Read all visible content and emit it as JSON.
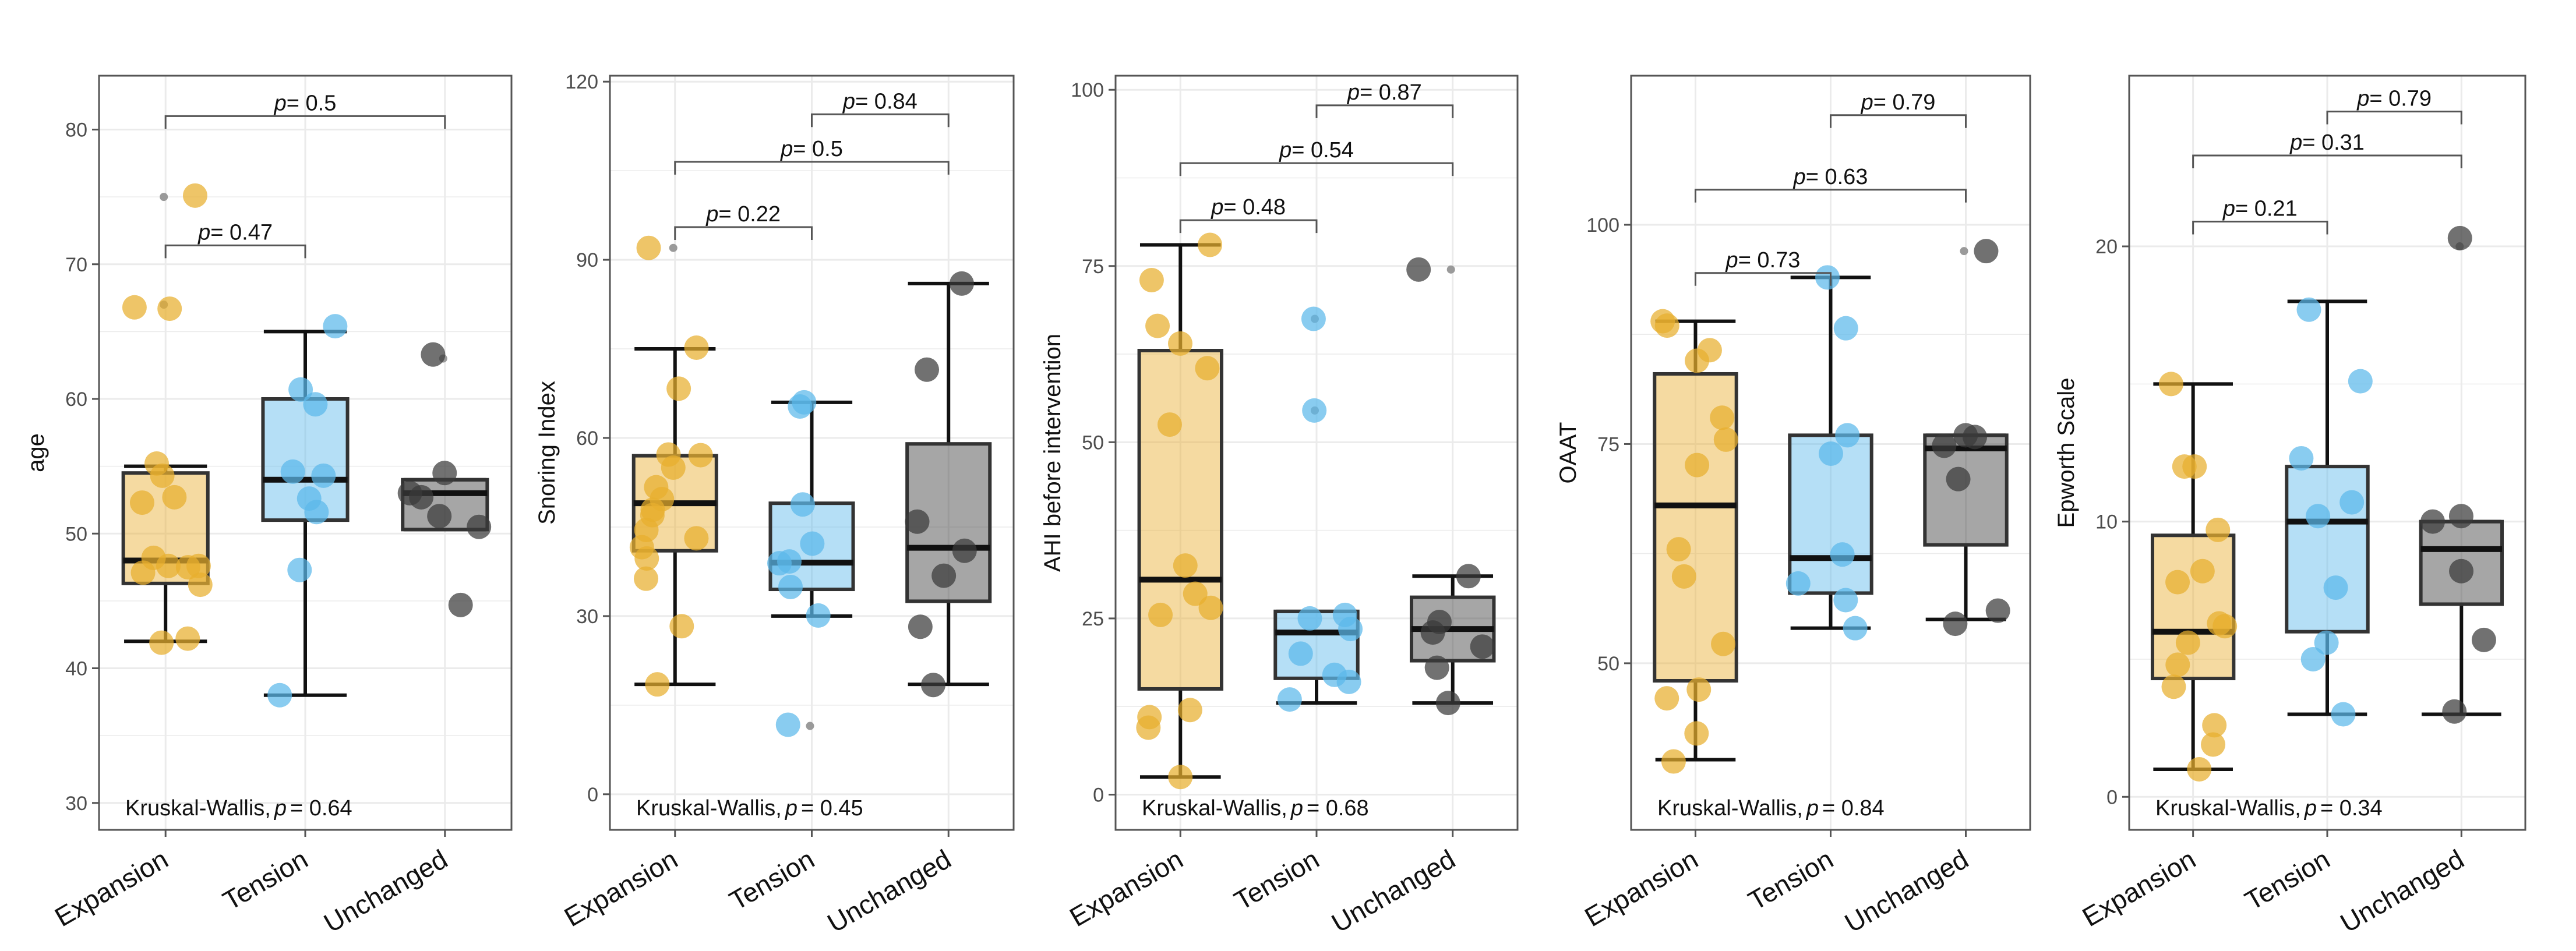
{
  "colors": {
    "expansion": "#E8AE2E",
    "tension": "#5BB8EA",
    "unchanged": "#3A3A3A",
    "grid": "#EBEBEB",
    "frame": "#555555"
  },
  "chart_data": [
    {
      "type": "boxplot",
      "ylabel": "age",
      "categories": [
        "Expansion",
        "Tension",
        "Unchanged"
      ],
      "ylim": [
        28,
        84
      ],
      "yticks": [
        30,
        40,
        50,
        60,
        70,
        80
      ],
      "boxes": [
        {
          "q1": 46.3,
          "median": 48,
          "q3": 54.5,
          "whisker_low": 42,
          "whisker_high": 55
        },
        {
          "q1": 51,
          "median": 54,
          "q3": 60,
          "whisker_low": 38,
          "whisker_high": 65
        },
        {
          "q1": 50.3,
          "median": 53,
          "q3": 54,
          "whisker_low": 50.3,
          "whisker_high": 54
        }
      ],
      "outliers": [
        [
          75,
          67
        ],
        [],
        [
          63
        ]
      ],
      "points": [
        [
          75.1,
          66.8,
          66.7,
          55.2,
          54.3,
          52.7,
          52.3,
          48.2,
          47.6,
          47.6,
          47.5,
          47.1,
          46.2,
          42.2,
          41.9
        ],
        [
          65.4,
          60.7,
          59.6,
          54.6,
          54.3,
          52.6,
          51.6,
          47.3,
          38
        ],
        [
          63.3,
          54.5,
          53,
          52.7,
          51.3,
          50.5,
          44.7
        ]
      ],
      "pvalues": [
        {
          "text": "0.5",
          "from": 0,
          "to": 2,
          "y": 81
        },
        {
          "text": "0.47",
          "from": 0,
          "to": 1,
          "y": 71.4
        }
      ],
      "kruskal_label": "Kruskal-Wallis,",
      "kruskal_p": "= 0.64"
    },
    {
      "type": "boxplot",
      "ylabel": "Snoring Index",
      "categories": [
        "Expansion",
        "Tension",
        "Unchanged"
      ],
      "ylim": [
        -6,
        121
      ],
      "yticks": [
        0,
        30,
        60,
        90,
        120
      ],
      "boxes": [
        {
          "q1": 41,
          "median": 49,
          "q3": 57,
          "whisker_low": 18.5,
          "whisker_high": 75
        },
        {
          "q1": 34.5,
          "median": 39,
          "q3": 49,
          "whisker_low": 30,
          "whisker_high": 66
        },
        {
          "q1": 32.5,
          "median": 41.5,
          "q3": 59,
          "whisker_low": 18.5,
          "whisker_high": 86
        }
      ],
      "outliers": [
        [
          92
        ],
        [
          11.5
        ],
        []
      ],
      "points": [
        [
          92,
          75.2,
          68.3,
          57.2,
          57.1,
          55,
          51.7,
          49.7,
          47.9,
          47,
          44.5,
          43.1,
          41.6,
          39.7,
          36.3,
          28.3,
          18.5
        ],
        [
          66,
          65.3,
          48.8,
          42.2,
          39.2,
          38.9,
          34.9,
          30.1,
          11.7
        ],
        [
          86,
          71.5,
          45.9,
          41,
          36.8,
          28.2,
          18.4
        ]
      ],
      "pvalues": [
        {
          "text": "0.84",
          "from": 1,
          "to": 2,
          "y": 114.5
        },
        {
          "text": "0.5",
          "from": 0,
          "to": 2,
          "y": 106.5
        },
        {
          "text": "0.22",
          "from": 0,
          "to": 1,
          "y": 95.5
        }
      ],
      "kruskal_label": "Kruskal-Wallis,",
      "kruskal_p": "= 0.45"
    },
    {
      "type": "boxplot",
      "ylabel": "AHI before intervention",
      "categories": [
        "Expansion",
        "Tension",
        "Unchanged"
      ],
      "ylim": [
        -5,
        102
      ],
      "yticks": [
        0,
        25,
        50,
        75,
        100
      ],
      "boxes": [
        {
          "q1": 15,
          "median": 30.5,
          "q3": 63,
          "whisker_low": 2.5,
          "whisker_high": 78
        },
        {
          "q1": 16.5,
          "median": 23,
          "q3": 26,
          "whisker_low": 13,
          "whisker_high": 26
        },
        {
          "q1": 19,
          "median": 23.5,
          "q3": 28,
          "whisker_low": 13,
          "whisker_high": 31
        }
      ],
      "outliers": [
        [],
        [
          54.5,
          67.5
        ],
        [
          74.5
        ]
      ],
      "points": [
        [
          78,
          73,
          66.5,
          64,
          60.5,
          52.5,
          32.5,
          28.5,
          26.5,
          25.5,
          12,
          11,
          9.5,
          2.5
        ],
        [
          67.5,
          54.5,
          25.5,
          25,
          23.5,
          20,
          17,
          16,
          13.5
        ],
        [
          74.5,
          31,
          24.5,
          23,
          21,
          18,
          13
        ]
      ],
      "pvalues": [
        {
          "text": "0.87",
          "from": 1,
          "to": 2,
          "y": 97.8
        },
        {
          "text": "0.54",
          "from": 0,
          "to": 2,
          "y": 89.6
        },
        {
          "text": "0.48",
          "from": 0,
          "to": 1,
          "y": 81.5
        }
      ],
      "kruskal_label": "Kruskal-Wallis,",
      "kruskal_p": "= 0.68"
    },
    {
      "type": "boxplot",
      "ylabel": "OAAT",
      "categories": [
        "Expansion",
        "Tension",
        "Unchanged"
      ],
      "ylim": [
        31,
        117
      ],
      "yticks": [
        50,
        75,
        100
      ],
      "boxes": [
        {
          "q1": 48,
          "median": 68,
          "q3": 83,
          "whisker_low": 39,
          "whisker_high": 89
        },
        {
          "q1": 58,
          "median": 62,
          "q3": 76,
          "whisker_low": 54,
          "whisker_high": 94
        },
        {
          "q1": 63.5,
          "median": 74.5,
          "q3": 76,
          "whisker_low": 55,
          "whisker_high": 76
        }
      ],
      "outliers": [
        [],
        [],
        [
          97
        ]
      ],
      "points": [
        [
          89,
          88.5,
          85.7,
          84.5,
          78,
          75.5,
          72.6,
          63,
          59.9,
          52.2,
          47,
          46,
          42,
          38.8
        ],
        [
          94,
          88.2,
          76,
          73.9,
          62.4,
          59.1,
          57.2,
          54
        ],
        [
          97,
          76,
          75.8,
          74.8,
          71,
          56,
          54.5
        ]
      ],
      "pvalues": [
        {
          "text": "0.79",
          "from": 1,
          "to": 2,
          "y": 112.5
        },
        {
          "text": "0.63",
          "from": 0,
          "to": 2,
          "y": 104
        },
        {
          "text": "0.73",
          "from": 0,
          "to": 1,
          "y": 94.5
        }
      ],
      "kruskal_label": "Kruskal-Wallis,",
      "kruskal_p": "= 0.84"
    },
    {
      "type": "boxplot",
      "ylabel": "Epworth Scale",
      "categories": [
        "Expansion",
        "Tension",
        "Unchanged"
      ],
      "ylim": [
        -1.2,
        26.2
      ],
      "yticks": [
        0,
        10,
        20
      ],
      "boxes": [
        {
          "q1": 4.3,
          "median": 6,
          "q3": 9.5,
          "whisker_low": 1,
          "whisker_high": 15
        },
        {
          "q1": 6,
          "median": 10,
          "q3": 12,
          "whisker_low": 3,
          "whisker_high": 18
        },
        {
          "q1": 7,
          "median": 9,
          "q3": 10,
          "whisker_low": 3,
          "whisker_high": 10
        }
      ],
      "outliers": [
        [],
        [],
        [
          20
        ]
      ],
      "points": [
        [
          15,
          12,
          12,
          9.7,
          8.2,
          7.8,
          6.3,
          6.2,
          5.6,
          4.8,
          4,
          2.6,
          1.9,
          1
        ],
        [
          17.7,
          15.1,
          12.3,
          10.7,
          10.2,
          7.6,
          5.6,
          5,
          3
        ],
        [
          20.3,
          10.2,
          10,
          8.2,
          5.7,
          3.1
        ]
      ],
      "pvalues": [
        {
          "text": "0.79",
          "from": 1,
          "to": 2,
          "y": 24.9
        },
        {
          "text": "0.31",
          "from": 0,
          "to": 2,
          "y": 23.3
        },
        {
          "text": "0.21",
          "from": 0,
          "to": 1,
          "y": 20.9
        }
      ],
      "kruskal_label": "Kruskal-Wallis,",
      "kruskal_p": "= 0.34"
    }
  ]
}
